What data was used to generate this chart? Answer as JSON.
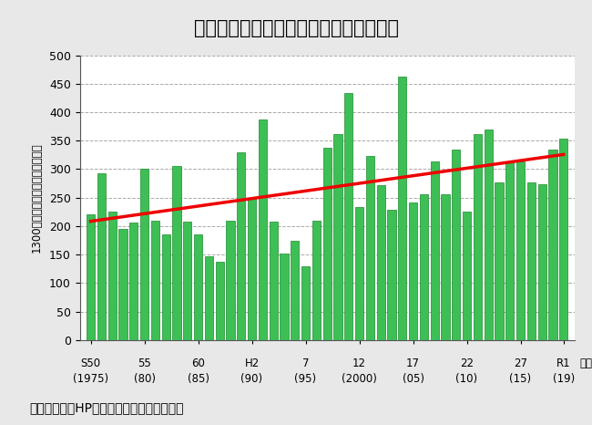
{
  "title": "１時間降水量５０㎜以上の年間発生回数",
  "ylabel": "1300地点当たりの発生回数（回）",
  "source": "資料：気象庁HP掲載資料より林野庁作成。",
  "years": [
    1975,
    1976,
    1977,
    1978,
    1979,
    1980,
    1981,
    1982,
    1983,
    1984,
    1985,
    1986,
    1987,
    1988,
    1989,
    1990,
    1991,
    1992,
    1993,
    1994,
    1995,
    1996,
    1997,
    1998,
    1999,
    2000,
    2001,
    2002,
    2003,
    2004,
    2005,
    2006,
    2007,
    2008,
    2009,
    2010,
    2011,
    2012,
    2013,
    2014,
    2015,
    2016,
    2017,
    2018,
    2019
  ],
  "values": [
    220,
    293,
    225,
    195,
    207,
    300,
    210,
    186,
    305,
    208,
    185,
    147,
    138,
    209,
    330,
    249,
    388,
    208,
    152,
    175,
    129,
    210,
    337,
    362,
    433,
    234,
    323,
    272,
    228,
    463,
    241,
    256,
    313,
    256,
    335,
    225,
    361,
    370,
    277,
    313,
    314,
    276,
    273,
    335,
    353
  ],
  "bar_color": "#3dbf55",
  "bar_edge_color": "#1a8a2a",
  "trend_color": "#ee0000",
  "background_color": "#e8e8e8",
  "plot_background": "#ffffff",
  "ylim": [
    0,
    500
  ],
  "yticks": [
    0,
    50,
    100,
    150,
    200,
    250,
    300,
    350,
    400,
    450,
    500
  ],
  "xtick_labels": [
    [
      "S50",
      "(1975)"
    ],
    [
      "55",
      "(80)"
    ],
    [
      "60",
      "(85)"
    ],
    [
      "H2",
      "(90)"
    ],
    [
      "7",
      "(95)"
    ],
    [
      "12",
      "(2000)"
    ],
    [
      "17",
      "(05)"
    ],
    [
      "22",
      "(10)"
    ],
    [
      "27",
      "(15)"
    ],
    [
      "R1",
      "(19)"
    ]
  ],
  "xtick_positions": [
    1975,
    1980,
    1985,
    1990,
    1995,
    2000,
    2005,
    2010,
    2015,
    2019
  ],
  "grid_color": "#aaaaaa",
  "title_fontsize": 15,
  "axis_fontsize": 9,
  "source_fontsize": 10
}
